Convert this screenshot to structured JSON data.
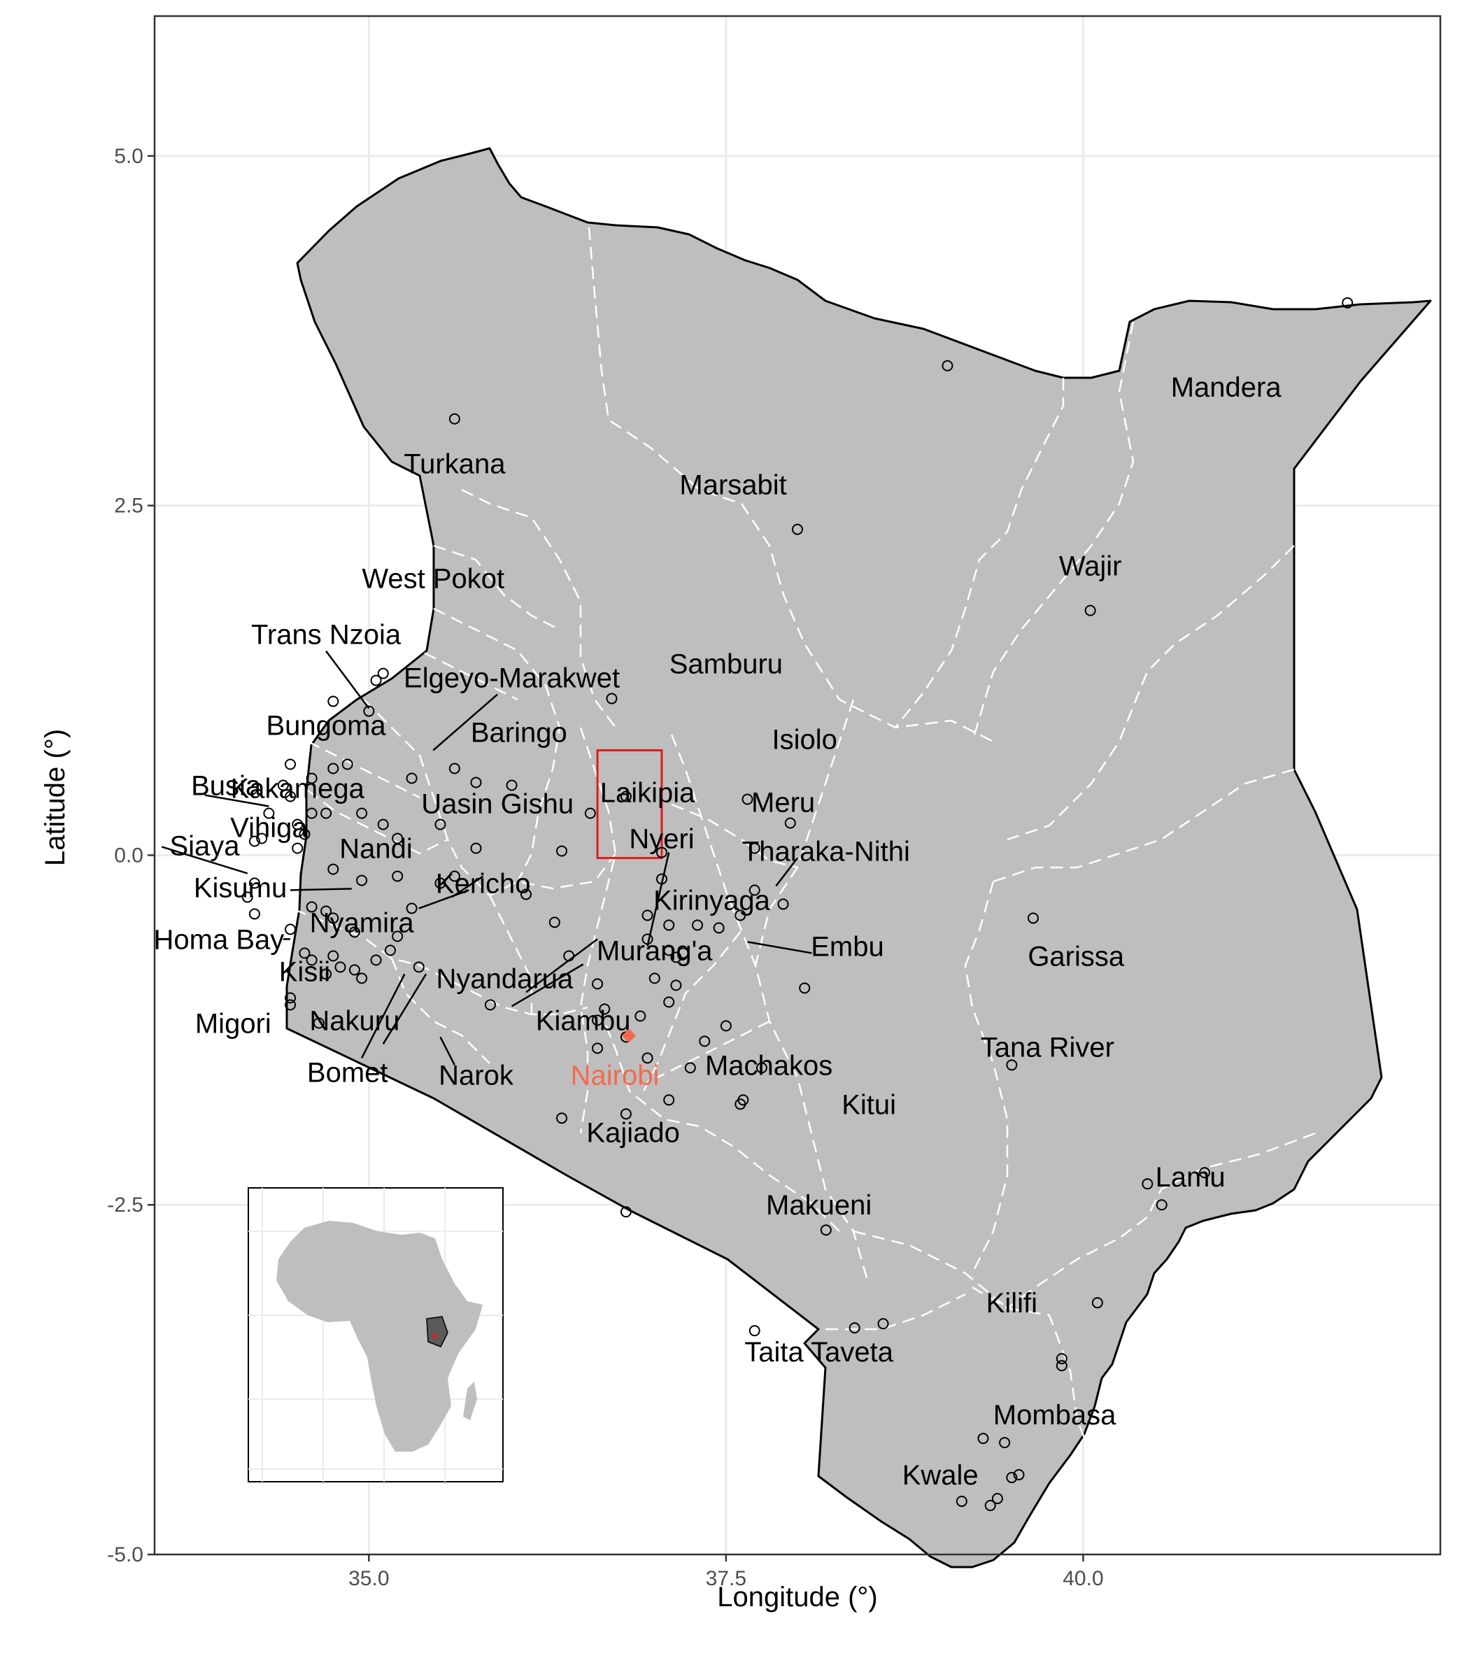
{
  "axes": {
    "x_title": "Longitude (°)",
    "y_title": "Latitude (°)",
    "x_ticks": [
      "35.0",
      "37.5",
      "40.0"
    ],
    "y_ticks": [
      "5.0",
      "2.5",
      "0.0",
      "-2.5",
      "-5.0"
    ]
  },
  "chart_data": {
    "type": "map",
    "xlim": [
      33.5,
      42.5
    ],
    "ylim": [
      -5.0,
      6.0
    ],
    "x_tick_values": [
      35.0,
      37.5,
      40.0
    ],
    "y_tick_values": [
      5.0,
      2.5,
      0.0,
      -2.5,
      -5.0
    ],
    "grid": true,
    "colors": {
      "land": "#bebebe",
      "border": "#000000",
      "county_border": "#ffffff",
      "capital": "#f4694d",
      "highlight_box": "#e31a1c",
      "inset_kenya": "#5a5a5a"
    },
    "highlight_box": {
      "lon": [
        36.6,
        37.05
      ],
      "lat": [
        -0.02,
        0.75
      ]
    },
    "capital": {
      "name": "Nairobi",
      "lon": 36.82,
      "lat": -1.29
    },
    "counties": [
      "Mandera",
      "Turkana",
      "Marsabit",
      "Wajir",
      "West Pokot",
      "Trans Nzoia",
      "Samburu",
      "Elgeyo-Marakwet",
      "Bungoma",
      "Baringo",
      "Isiolo",
      "Busia",
      "Kakamega",
      "Laikipia",
      "Meru",
      "Uasin Gishu",
      "Vihiga",
      "Siaya",
      "Nyeri",
      "Tharaka-Nithi",
      "Nandi",
      "Kisumu",
      "Kericho",
      "Kirinyaga",
      "Nyamira",
      "Homa Bay",
      "Embu",
      "Murang'a",
      "Garissa",
      "Kisii",
      "Nyandarua",
      "Migori",
      "Nakuru",
      "Kiambu",
      "Tana River",
      "Machakos",
      "Bomet",
      "Narok",
      "Kitui",
      "Kajiado",
      "Lamu",
      "Makueni",
      "Kilifi",
      "Taita Taveta",
      "Mombasa",
      "Kwale"
    ],
    "sites": [
      [
        35.6,
        3.12
      ],
      [
        39.05,
        3.5
      ],
      [
        41.85,
        3.95
      ],
      [
        38.0,
        2.33
      ],
      [
        40.05,
        1.75
      ],
      [
        35.05,
        1.25
      ],
      [
        35.1,
        1.3
      ],
      [
        35.0,
        1.03
      ],
      [
        34.75,
        1.1
      ],
      [
        36.7,
        1.12
      ],
      [
        34.45,
        0.65
      ],
      [
        34.6,
        0.55
      ],
      [
        34.75,
        0.62
      ],
      [
        34.85,
        0.65
      ],
      [
        34.4,
        0.5
      ],
      [
        34.45,
        0.42
      ],
      [
        34.7,
        0.3
      ],
      [
        34.95,
        0.3
      ],
      [
        34.6,
        0.3
      ],
      [
        34.3,
        0.3
      ],
      [
        34.5,
        0.22
      ],
      [
        34.55,
        0.15
      ],
      [
        34.25,
        0.12
      ],
      [
        34.2,
        0.1
      ],
      [
        34.5,
        0.05
      ],
      [
        35.1,
        0.22
      ],
      [
        35.2,
        0.12
      ],
      [
        35.3,
        0.55
      ],
      [
        35.5,
        0.22
      ],
      [
        35.6,
        0.62
      ],
      [
        35.75,
        0.52
      ],
      [
        36.0,
        0.5
      ],
      [
        36.55,
        0.3
      ],
      [
        36.8,
        0.42
      ],
      [
        37.65,
        0.4
      ],
      [
        37.95,
        0.23
      ],
      [
        35.75,
        0.05
      ],
      [
        36.35,
        0.03
      ],
      [
        37.05,
        0.02
      ],
      [
        37.7,
        0.05
      ],
      [
        34.75,
        -0.1
      ],
      [
        34.95,
        -0.18
      ],
      [
        34.2,
        -0.2
      ],
      [
        35.2,
        -0.15
      ],
      [
        35.5,
        -0.2
      ],
      [
        35.6,
        -0.15
      ],
      [
        36.1,
        -0.28
      ],
      [
        37.05,
        -0.17
      ],
      [
        37.7,
        -0.25
      ],
      [
        37.9,
        -0.35
      ],
      [
        34.15,
        -0.3
      ],
      [
        34.6,
        -0.37
      ],
      [
        34.7,
        -0.4
      ],
      [
        34.75,
        -0.45
      ],
      [
        34.9,
        -0.55
      ],
      [
        35.2,
        -0.58
      ],
      [
        35.3,
        -0.38
      ],
      [
        34.45,
        -0.53
      ],
      [
        34.2,
        -0.42
      ],
      [
        36.3,
        -0.48
      ],
      [
        36.95,
        -0.43
      ],
      [
        37.1,
        -0.5
      ],
      [
        37.3,
        -0.5
      ],
      [
        37.45,
        -0.52
      ],
      [
        37.6,
        -0.43
      ],
      [
        36.95,
        -0.6
      ],
      [
        37.1,
        -0.68
      ],
      [
        37.15,
        -0.73
      ],
      [
        37.2,
        -0.7
      ],
      [
        36.4,
        -0.72
      ],
      [
        34.55,
        -0.7
      ],
      [
        34.6,
        -0.75
      ],
      [
        34.75,
        -0.72
      ],
      [
        35.15,
        -0.68
      ],
      [
        34.8,
        -0.8
      ],
      [
        34.9,
        -0.82
      ],
      [
        35.05,
        -0.75
      ],
      [
        35.35,
        -0.8
      ],
      [
        34.7,
        -0.85
      ],
      [
        34.95,
        -0.88
      ],
      [
        37.0,
        -0.88
      ],
      [
        37.15,
        -0.93
      ],
      [
        36.6,
        -0.92
      ],
      [
        37.1,
        -1.05
      ],
      [
        36.65,
        -1.1
      ],
      [
        36.9,
        -1.15
      ],
      [
        36.6,
        -1.18
      ],
      [
        36.8,
        -1.3
      ],
      [
        36.6,
        -1.38
      ],
      [
        36.95,
        -1.45
      ],
      [
        37.25,
        -1.52
      ],
      [
        37.35,
        -1.33
      ],
      [
        37.5,
        -1.22
      ],
      [
        37.75,
        -1.52
      ],
      [
        38.05,
        -0.95
      ],
      [
        34.45,
        -1.02
      ],
      [
        34.45,
        -1.07
      ],
      [
        35.85,
        -1.07
      ],
      [
        34.65,
        -1.2
      ],
      [
        37.1,
        -1.75
      ],
      [
        36.8,
        -1.85
      ],
      [
        36.35,
        -1.88
      ],
      [
        37.6,
        -1.78
      ],
      [
        37.62,
        -1.75
      ],
      [
        36.8,
        -2.55
      ],
      [
        38.2,
        -2.68
      ],
      [
        39.5,
        -1.5
      ],
      [
        39.65,
        -0.45
      ],
      [
        40.45,
        -2.35
      ],
      [
        40.55,
        -2.5
      ],
      [
        40.85,
        -2.27
      ],
      [
        40.1,
        -3.2
      ],
      [
        39.85,
        -3.6
      ],
      [
        39.85,
        -3.65
      ],
      [
        37.7,
        -3.4
      ],
      [
        38.4,
        -3.38
      ],
      [
        38.6,
        -3.35
      ],
      [
        39.3,
        -4.17
      ],
      [
        39.45,
        -4.2
      ],
      [
        39.5,
        -4.45
      ],
      [
        39.55,
        -4.43
      ],
      [
        39.15,
        -4.62
      ],
      [
        39.35,
        -4.65
      ],
      [
        39.4,
        -4.6
      ]
    ]
  },
  "labels": [
    {
      "text": "Mandera",
      "lon": 41.0,
      "lat": 3.35
    },
    {
      "text": "Turkana",
      "lon": 35.6,
      "lat": 2.8
    },
    {
      "text": "Marsabit",
      "lon": 37.55,
      "lat": 2.65
    },
    {
      "text": "Wajir",
      "lon": 40.05,
      "lat": 2.07
    },
    {
      "text": "West Pokot",
      "lon": 35.45,
      "lat": 1.98
    },
    {
      "text": "Trans Nzoia",
      "lon": 34.7,
      "lat": 1.58
    },
    {
      "text": "Samburu",
      "lon": 37.5,
      "lat": 1.37
    },
    {
      "text": "Elgeyo-Marakwet",
      "lon": 36.0,
      "lat": 1.27
    },
    {
      "text": "Bungoma",
      "lon": 34.7,
      "lat": 0.93
    },
    {
      "text": "Baringo",
      "lon": 36.05,
      "lat": 0.88
    },
    {
      "text": "Isiolo",
      "lon": 38.05,
      "lat": 0.83
    },
    {
      "text": "Busia",
      "lon": 34.0,
      "lat": 0.5
    },
    {
      "text": "Kakamega",
      "lon": 34.5,
      "lat": 0.48
    },
    {
      "text": "Laikipia",
      "lon": 36.95,
      "lat": 0.45
    },
    {
      "text": "Meru",
      "lon": 37.9,
      "lat": 0.38
    },
    {
      "text": "Uasin Gishu",
      "lon": 35.9,
      "lat": 0.37
    },
    {
      "text": "Vihiga",
      "lon": 34.3,
      "lat": 0.2
    },
    {
      "text": "Siaya",
      "lon": 33.85,
      "lat": 0.07
    },
    {
      "text": "Nyeri",
      "lon": 37.05,
      "lat": 0.12
    },
    {
      "text": "Tharaka-Nithi",
      "lon": 38.2,
      "lat": 0.03
    },
    {
      "text": "Nandi",
      "lon": 35.05,
      "lat": 0.05
    },
    {
      "text": "Kisumu",
      "lon": 34.1,
      "lat": -0.23
    },
    {
      "text": "Kericho",
      "lon": 35.8,
      "lat": -0.2
    },
    {
      "text": "Kirinyaga",
      "lon": 37.4,
      "lat": -0.32
    },
    {
      "text": "Nyamira",
      "lon": 34.95,
      "lat": -0.48
    },
    {
      "text": "Homa Bay",
      "lon": 33.95,
      "lat": -0.6
    },
    {
      "text": "Embu",
      "lon": 38.35,
      "lat": -0.65
    },
    {
      "text": "Murang'a",
      "lon": 37.0,
      "lat": -0.68
    },
    {
      "text": "Garissa",
      "lon": 39.95,
      "lat": -0.72
    },
    {
      "text": "Kisii",
      "lon": 34.55,
      "lat": -0.83
    },
    {
      "text": "Nyandarua",
      "lon": 35.95,
      "lat": -0.88
    },
    {
      "text": "Migori",
      "lon": 34.05,
      "lat": -1.2
    },
    {
      "text": "Nakuru",
      "lon": 34.9,
      "lat": -1.18
    },
    {
      "text": "Kiambu",
      "lon": 36.5,
      "lat": -1.18
    },
    {
      "text": "Tana River",
      "lon": 39.75,
      "lat": -1.37
    },
    {
      "text": "Machakos",
      "lon": 37.8,
      "lat": -1.5
    },
    {
      "text": "Bomet",
      "lon": 34.85,
      "lat": -1.55
    },
    {
      "text": "Narok",
      "lon": 35.75,
      "lat": -1.57
    },
    {
      "text": "Kitui",
      "lon": 38.5,
      "lat": -1.78
    },
    {
      "text": "Kajiado",
      "lon": 36.85,
      "lat": -1.98
    },
    {
      "text": "Lamu",
      "lon": 40.75,
      "lat": -2.3
    },
    {
      "text": "Makueni",
      "lon": 38.15,
      "lat": -2.5
    },
    {
      "text": "Kilifi",
      "lon": 39.5,
      "lat": -3.2
    },
    {
      "text": "Taita Taveta",
      "lon": 38.15,
      "lat": -3.55
    },
    {
      "text": "Mombasa",
      "lon": 39.8,
      "lat": -4.0
    },
    {
      "text": "Kwale",
      "lon": 39.0,
      "lat": -4.43
    }
  ],
  "leaders": [
    [
      [
        34.7,
        1.46
      ],
      [
        35.0,
        1.05
      ]
    ],
    [
      [
        35.9,
        1.15
      ],
      [
        35.45,
        0.75
      ]
    ],
    [
      [
        33.85,
        0.43
      ],
      [
        34.3,
        0.35
      ]
    ],
    [
      [
        33.55,
        0.06
      ],
      [
        34.15,
        -0.13
      ]
    ],
    [
      [
        34.45,
        -0.25
      ],
      [
        34.88,
        -0.24
      ]
    ],
    [
      [
        34.4,
        -0.6
      ],
      [
        34.45,
        -0.6
      ]
    ],
    [
      [
        35.7,
        -0.25
      ],
      [
        35.35,
        -0.38
      ]
    ],
    [
      [
        35.8,
        -0.15
      ],
      [
        35.58,
        -0.3
      ]
    ],
    [
      [
        37.1,
        0.02
      ],
      [
        36.95,
        -0.65
      ]
    ],
    [
      [
        38.0,
        -0.02
      ],
      [
        37.85,
        -0.22
      ]
    ],
    [
      [
        38.1,
        -0.7
      ],
      [
        37.65,
        -0.62
      ]
    ],
    [
      [
        36.5,
        -0.78
      ],
      [
        36.0,
        -1.08
      ]
    ],
    [
      [
        36.6,
        -0.6
      ],
      [
        36.1,
        -0.98
      ]
    ],
    [
      [
        35.25,
        -0.85
      ],
      [
        34.95,
        -1.45
      ]
    ],
    [
      [
        35.4,
        -0.85
      ],
      [
        35.1,
        -1.35
      ]
    ],
    [
      [
        35.5,
        -1.3
      ],
      [
        35.6,
        -1.5
      ]
    ]
  ]
}
